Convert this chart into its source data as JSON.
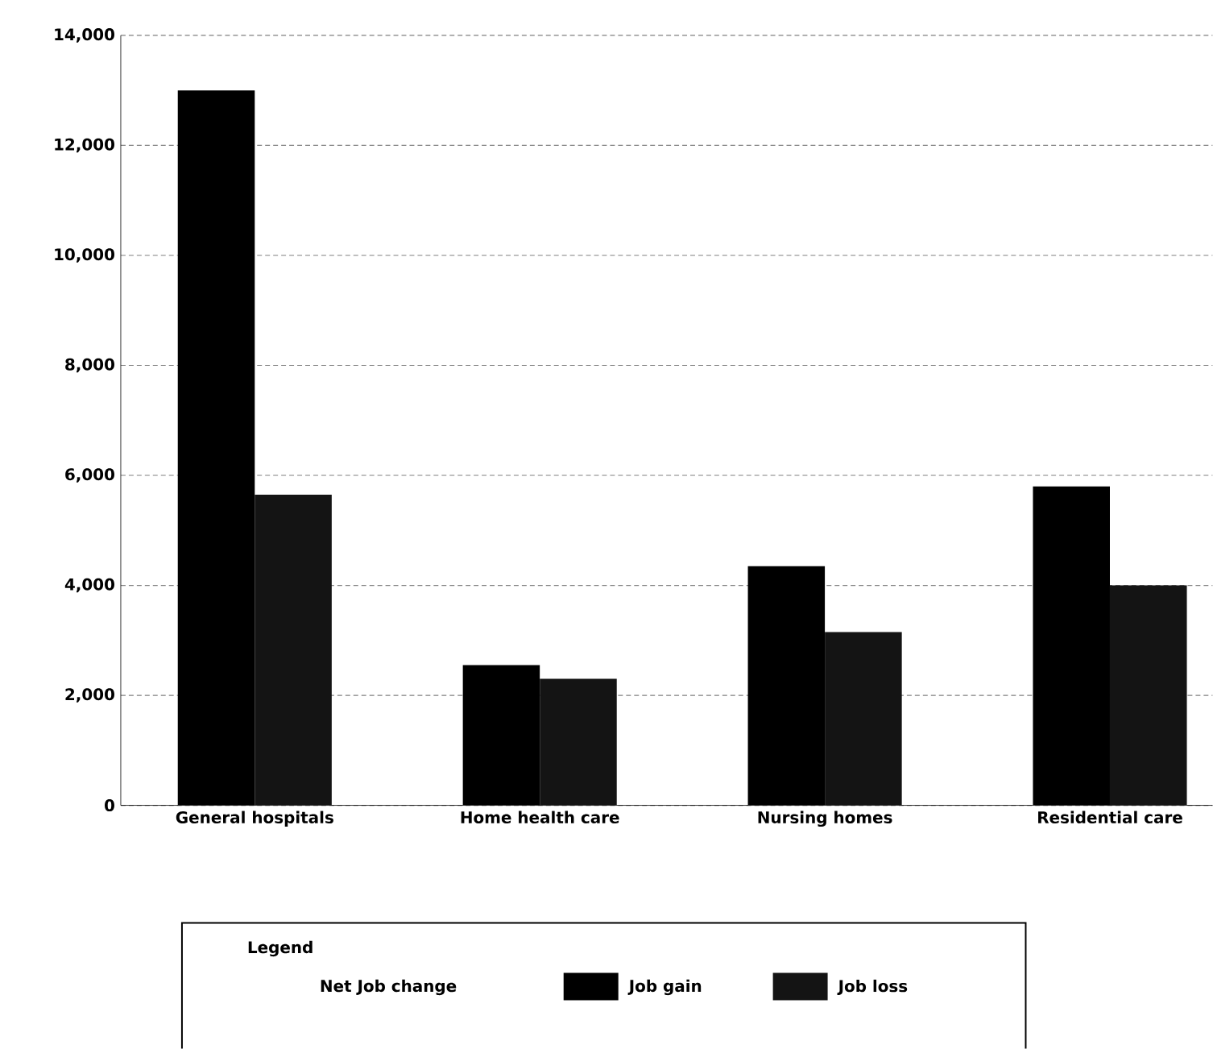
{
  "chart_data": {
    "type": "bar",
    "categories": [
      "General hospitals",
      "Home health care",
      "Nursing homes",
      "Residential care"
    ],
    "series": [
      {
        "name": "Job gain",
        "color": "#000000",
        "values": [
          13000,
          2550,
          4350,
          5800
        ]
      },
      {
        "name": "Job loss",
        "color": "#141414",
        "values": [
          5650,
          2300,
          3150,
          4000
        ]
      }
    ],
    "legend_title": "Net Job change",
    "annotations": [
      "Legend"
    ],
    "ylim": [
      0,
      14000
    ],
    "yticks": [
      {
        "value": 0,
        "label": "0"
      },
      {
        "value": 2000,
        "label": "2,000"
      },
      {
        "value": 4000,
        "label": "4,000"
      },
      {
        "value": 6000,
        "label": "6,000"
      },
      {
        "value": 8000,
        "label": "8,000"
      },
      {
        "value": 10000,
        "label": "10,000"
      },
      {
        "value": 12000,
        "label": "12,000"
      },
      {
        "value": 14000,
        "label": "14,000"
      }
    ],
    "grid": "y",
    "legend": "bottom"
  }
}
